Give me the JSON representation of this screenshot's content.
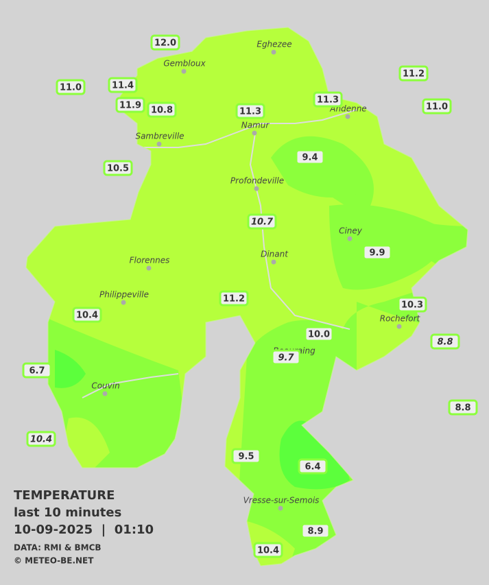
{
  "legend": {
    "title": "TEMPERATURE",
    "subtitle": "last 10 minutes",
    "datetime": "10-09-2025  |  01:10",
    "source": "DATA: RMI & BMCB",
    "credit": "© METEO-BE.NET"
  },
  "cities": [
    "Eghezee",
    "Gembloux",
    "Andenne",
    "Namur",
    "Sambreville",
    "Profondeville",
    "Ciney",
    "Dinant",
    "Florennes",
    "Philippeville",
    "Rochefort",
    "Beauraing",
    "Couvin",
    "Vresse-sur-Semois"
  ],
  "stations": [
    {
      "label": "12.0",
      "italic": false
    },
    {
      "label": "11.4",
      "italic": false
    },
    {
      "label": "11.0",
      "italic": false
    },
    {
      "label": "11.9",
      "italic": false
    },
    {
      "label": "10.8",
      "italic": false
    },
    {
      "label": "11.3",
      "italic": false
    },
    {
      "label": "11.3",
      "italic": false
    },
    {
      "label": "11.2",
      "italic": false
    },
    {
      "label": "11.0",
      "italic": false
    },
    {
      "label": "10.5",
      "italic": false
    },
    {
      "label": "9.4",
      "italic": false
    },
    {
      "label": "10.7",
      "italic": true
    },
    {
      "label": "9.9",
      "italic": false
    },
    {
      "label": "11.2",
      "italic": false
    },
    {
      "label": "10.4",
      "italic": false
    },
    {
      "label": "10.3",
      "italic": false
    },
    {
      "label": "10.0",
      "italic": false
    },
    {
      "label": "8.8",
      "italic": true
    },
    {
      "label": "9.7",
      "italic": true
    },
    {
      "label": "6.7",
      "italic": false
    },
    {
      "label": "8.8",
      "italic": false
    },
    {
      "label": "10.4",
      "italic": true
    },
    {
      "label": "9.5",
      "italic": false
    },
    {
      "label": "6.4",
      "italic": false
    },
    {
      "label": "8.9",
      "italic": false
    },
    {
      "label": "10.4",
      "italic": false
    }
  ]
}
